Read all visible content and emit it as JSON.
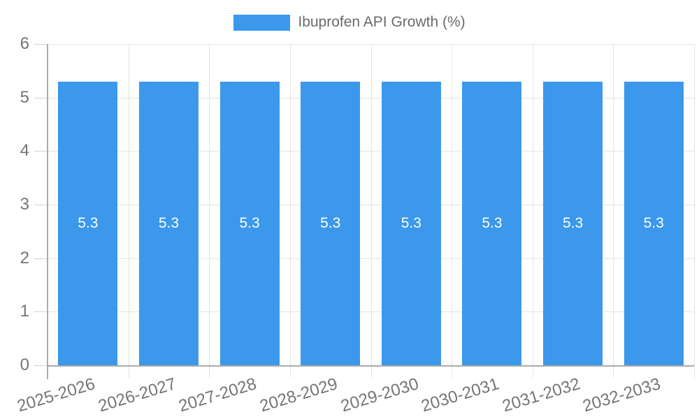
{
  "chart_data": {
    "type": "bar",
    "title": "",
    "legend": {
      "position": "top",
      "label": "Ibuprofen API Growth (%)"
    },
    "categories": [
      "2025-2026",
      "2026-2027",
      "2027-2028",
      "2028-2029",
      "2029-2030",
      "2030-2031",
      "2031-2032",
      "2032-2033"
    ],
    "series": [
      {
        "name": "Ibuprofen API Growth (%)",
        "values": [
          5.3,
          5.3,
          5.3,
          5.3,
          5.3,
          5.3,
          5.3,
          5.3
        ],
        "value_labels": [
          "5.3",
          "5.3",
          "5.3",
          "5.3",
          "5.3",
          "5.3",
          "5.3",
          "5.3"
        ]
      }
    ],
    "xlabel": "",
    "ylabel": "",
    "ylim": [
      0,
      6
    ],
    "yticks": [
      0,
      1,
      2,
      3,
      4,
      5,
      6
    ],
    "grid": true,
    "colors": {
      "bar": "#3B98EB",
      "grid": "#E4E4E4",
      "tick": "#D2D2D2",
      "axis": "#ABABAB",
      "tick_text": "#757575",
      "legend_text": "#6B6B6B",
      "bar_label_text": "#FFFFFF"
    }
  }
}
